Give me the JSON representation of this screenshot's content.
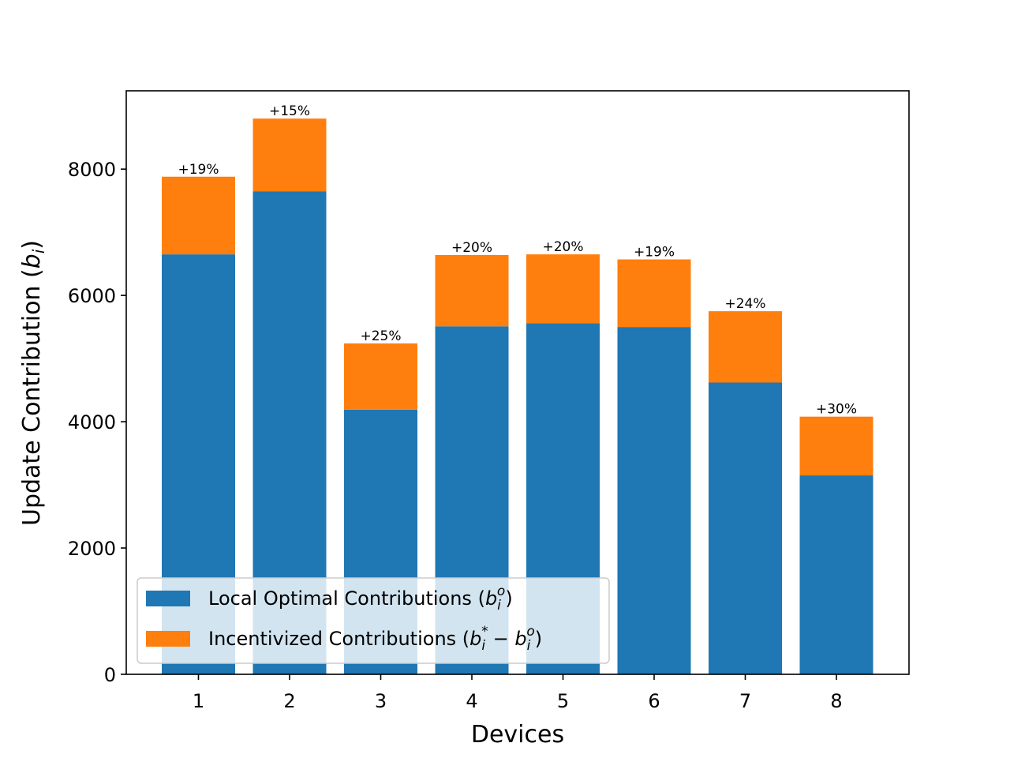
{
  "chart_data": {
    "type": "bar",
    "stacked": true,
    "categories": [
      "1",
      "2",
      "3",
      "4",
      "5",
      "6",
      "7",
      "8"
    ],
    "series": [
      {
        "name": "Local Optimal Contributions (b_i^o)",
        "color": "#1f77b4",
        "values": [
          6650,
          7650,
          4190,
          5510,
          5560,
          5500,
          4620,
          3150
        ]
      },
      {
        "name": "Incentivized Contributions (b_i^* − b_i^o)",
        "color": "#ff7f0e",
        "values": [
          1230,
          1150,
          1050,
          1130,
          1090,
          1070,
          1130,
          930
        ]
      }
    ],
    "bar_labels": [
      "+19%",
      "+15%",
      "+25%",
      "+20%",
      "+20%",
      "+19%",
      "+24%",
      "+30%"
    ],
    "xlabel": "Devices",
    "ylabel": "Update Contribution (b_i)",
    "yticks": [
      0,
      2000,
      4000,
      6000,
      8000
    ],
    "ylim": [
      0,
      9240
    ],
    "grid": false,
    "legend_position": "lower-left"
  }
}
